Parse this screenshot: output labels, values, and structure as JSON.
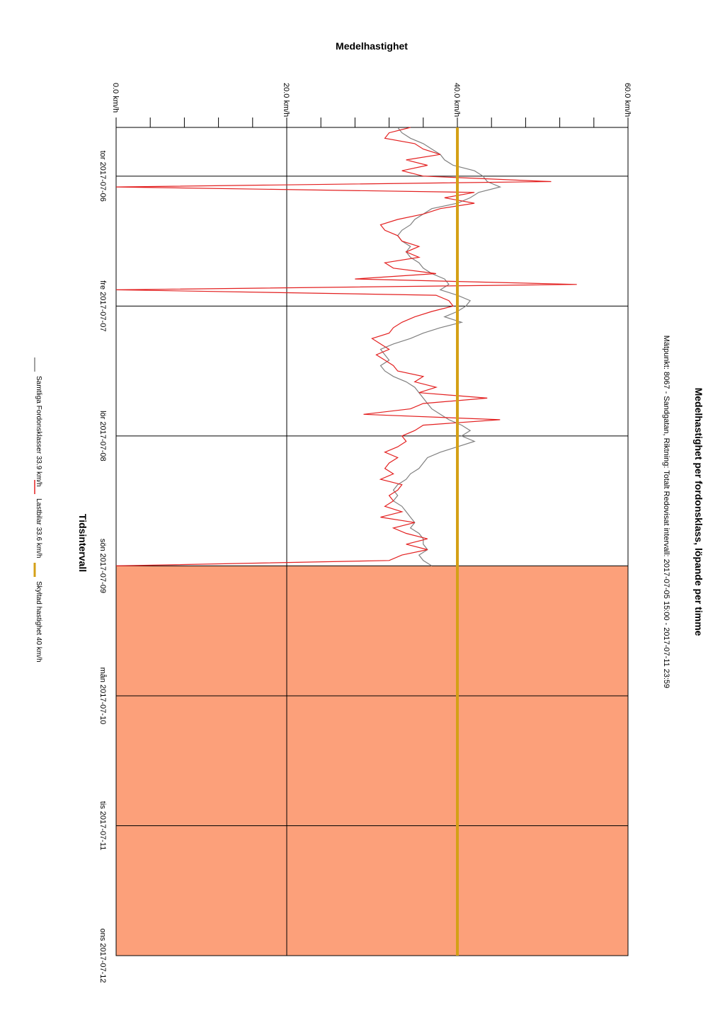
{
  "chart_data": {
    "type": "line",
    "orientation": "rotated-90",
    "title": "Medelhastighet per fordonsklass, löpande per timme",
    "subtitle": "Mätpunkt: 8067 -  Sandgatan, Riktning: Totalt  Redovisat intervall: 2017-07-05 15:00 - 2017-07-11 23:59",
    "value_axis_label": "Medelhastighet",
    "time_axis_label": "Tidsintervall",
    "value_ticks": [
      "0.0 km/h",
      "20.0 km/h",
      "40.0 km/h",
      "60.0 km/h"
    ],
    "ylim": [
      0,
      60
    ],
    "grid": true,
    "xlim_hours": [
      15,
      168
    ],
    "time_ticks": [
      {
        "label": "tor 2017-07-06",
        "hour": 24
      },
      {
        "label": "fre 2017-07-07",
        "hour": 48
      },
      {
        "label": "lör 2017-07-08",
        "hour": 72
      },
      {
        "label": "sön 2017-07-09",
        "hour": 96
      },
      {
        "label": "mån 2017-07-10",
        "hour": 120
      },
      {
        "label": "tis 2017-07-11",
        "hour": 144
      },
      {
        "label": "ons 2017-07-12",
        "hour": 168
      }
    ],
    "no_data_from_hour": 96,
    "no_data_color": "#fca07a",
    "speed_limit": {
      "name": "Skyltad hastighet 40 km/h",
      "value": 40,
      "color": "#d4a017"
    },
    "series": [
      {
        "name": "Samtliga Fordonsklasser 33.9 km/h",
        "color": "#808080",
        "hours": [
          15,
          16,
          17,
          18,
          19,
          20,
          21,
          22,
          23,
          24,
          25,
          26,
          27,
          28,
          29,
          30,
          31,
          32,
          33,
          34,
          35,
          36,
          37,
          38,
          39,
          40,
          41,
          42,
          43,
          44,
          45,
          46,
          47,
          48,
          49,
          50,
          51,
          52,
          53,
          54,
          55,
          56,
          57,
          58,
          59,
          60,
          61,
          62,
          63,
          64,
          65,
          66,
          67,
          68,
          69,
          70,
          71,
          72,
          73,
          74,
          75,
          76,
          77,
          78,
          79,
          80,
          81,
          82,
          83,
          84,
          85,
          86,
          87,
          88,
          89,
          90,
          91,
          92,
          93,
          94,
          95,
          96
        ],
        "values": [
          33.0,
          33.5,
          34.5,
          36.0,
          37.0,
          38.0,
          38.5,
          39.5,
          42.0,
          43.0,
          43.5,
          45.0,
          42.5,
          41.5,
          40.0,
          37.0,
          36.0,
          35.0,
          34.5,
          33.5,
          33.0,
          33.5,
          34.5,
          34.0,
          34.5,
          35.5,
          36.0,
          37.0,
          38.5,
          39.0,
          38.0,
          40.0,
          41.5,
          41.0,
          40.0,
          38.5,
          40.5,
          38.0,
          36.0,
          34.5,
          32.5,
          31.0,
          31.5,
          32.0,
          31.0,
          31.5,
          32.5,
          34.0,
          35.0,
          35.5,
          36.0,
          36.5,
          37.0,
          38.0,
          39.0,
          40.5,
          41.5,
          40.5,
          42.0,
          40.0,
          38.0,
          36.5,
          36.0,
          35.5,
          34.5,
          34.0,
          33.0,
          32.5,
          33.0,
          32.5,
          33.5,
          34.0,
          34.5,
          35.0,
          34.5,
          35.5,
          36.0,
          36.0,
          36.5,
          35.5,
          36.0,
          37.0
        ]
      },
      {
        "name": "Lastbilar 33.6 km/h",
        "color": "#e32020",
        "hours": [
          15,
          16,
          17,
          18,
          19,
          20,
          21,
          22,
          23,
          24,
          25,
          26,
          27,
          28,
          29,
          30,
          31,
          32,
          33,
          34,
          35,
          36,
          37,
          38,
          39,
          40,
          41,
          42,
          43,
          44,
          45,
          46,
          47,
          48,
          49,
          50,
          51,
          52,
          53,
          54,
          55,
          56,
          57,
          58,
          59,
          60,
          61,
          62,
          63,
          64,
          65,
          66,
          67,
          68,
          69,
          70,
          71,
          72,
          73,
          74,
          75,
          76,
          77,
          78,
          79,
          80,
          81,
          82,
          83,
          84,
          85,
          86,
          87,
          88,
          89,
          90,
          91,
          92,
          93,
          94,
          95,
          96
        ],
        "values": [
          34.5,
          32.0,
          31.5,
          35.0,
          36.0,
          38.0,
          34.0,
          36.5,
          33.5,
          36.0,
          51.0,
          0.0,
          42.0,
          38.5,
          42.0,
          38.0,
          36.0,
          33.0,
          31.0,
          31.5,
          33.0,
          33.5,
          35.5,
          34.0,
          35.5,
          31.5,
          32.5,
          37.5,
          28.0,
          54.0,
          0.0,
          37.5,
          39.0,
          39.5,
          37.0,
          35.0,
          33.5,
          32.5,
          32.0,
          30.0,
          31.0,
          32.0,
          30.5,
          31.5,
          32.5,
          33.0,
          36.0,
          35.0,
          37.5,
          35.5,
          43.5,
          36.0,
          34.5,
          29.0,
          45.0,
          36.0,
          35.0,
          33.5,
          34.0,
          33.0,
          31.5,
          33.0,
          32.0,
          31.5,
          32.5,
          31.0,
          33.5,
          33.0,
          32.0,
          32.5,
          31.5,
          33.5,
          31.0,
          35.0,
          32.5,
          34.0,
          36.5,
          34.0,
          36.5,
          33.5,
          32.0,
          0.0
        ]
      }
    ]
  }
}
